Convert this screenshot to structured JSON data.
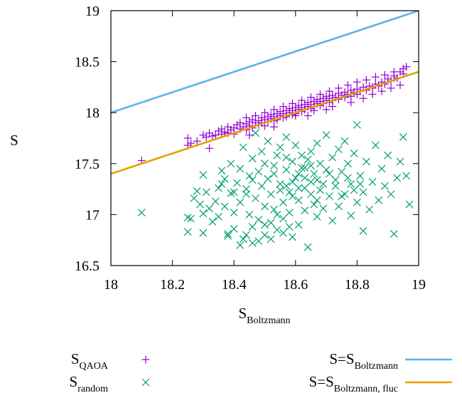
{
  "chart_data": {
    "type": "scatter",
    "xlabel": {
      "main": "S",
      "sub": "Boltzmann"
    },
    "ylabel": "S",
    "xlim": [
      18,
      19
    ],
    "ylim": [
      16.5,
      19
    ],
    "x_ticks": [
      "18",
      "18.2",
      "18.4",
      "18.6",
      "18.8",
      "19"
    ],
    "y_ticks": [
      "16.5",
      "17",
      "17.5",
      "18",
      "18.5",
      "19"
    ],
    "grid": false,
    "legend_position": "bottom",
    "series": [
      {
        "key": "qaoa",
        "legend_main": "S",
        "legend_sub": "QAOA",
        "marker": "plus",
        "color": "#9400d3",
        "points": [
          [
            18.1,
            17.53
          ],
          [
            18.25,
            17.75
          ],
          [
            18.25,
            17.68
          ],
          [
            18.26,
            17.7
          ],
          [
            18.28,
            17.72
          ],
          [
            18.3,
            17.78
          ],
          [
            18.31,
            17.76
          ],
          [
            18.32,
            17.8
          ],
          [
            18.32,
            17.65
          ],
          [
            18.33,
            17.77
          ],
          [
            18.34,
            17.78
          ],
          [
            18.35,
            17.82
          ],
          [
            18.36,
            17.79
          ],
          [
            18.36,
            17.84
          ],
          [
            18.37,
            17.81
          ],
          [
            18.38,
            17.86
          ],
          [
            18.38,
            17.8
          ],
          [
            18.39,
            17.83
          ],
          [
            18.4,
            17.85
          ],
          [
            18.4,
            17.79
          ],
          [
            18.41,
            17.88
          ],
          [
            18.42,
            17.84
          ],
          [
            18.42,
            17.9
          ],
          [
            18.43,
            17.86
          ],
          [
            18.44,
            17.89
          ],
          [
            18.44,
            17.83
          ],
          [
            18.45,
            17.91
          ],
          [
            18.45,
            17.87
          ],
          [
            18.46,
            17.93
          ],
          [
            18.46,
            17.85
          ],
          [
            18.47,
            17.9
          ],
          [
            18.48,
            17.92
          ],
          [
            18.48,
            17.88
          ],
          [
            18.49,
            17.95
          ],
          [
            18.49,
            17.9
          ],
          [
            18.5,
            17.93
          ],
          [
            18.5,
            17.87
          ],
          [
            18.51,
            17.96
          ],
          [
            18.51,
            17.91
          ],
          [
            18.52,
            17.94
          ],
          [
            18.52,
            17.98
          ],
          [
            18.53,
            17.92
          ],
          [
            18.53,
            17.96
          ],
          [
            18.54,
            17.99
          ],
          [
            18.54,
            17.93
          ],
          [
            18.55,
            17.97
          ],
          [
            18.55,
            18.01
          ],
          [
            18.56,
            17.95
          ],
          [
            18.56,
            17.99
          ],
          [
            18.57,
            18.02
          ],
          [
            18.57,
            17.96
          ],
          [
            18.58,
            18.0
          ],
          [
            18.58,
            18.04
          ],
          [
            18.59,
            17.98
          ],
          [
            18.59,
            18.02
          ],
          [
            18.6,
            18.05
          ],
          [
            18.6,
            17.99
          ],
          [
            18.61,
            18.03
          ],
          [
            18.61,
            18.07
          ],
          [
            18.62,
            18.01
          ],
          [
            18.62,
            18.05
          ],
          [
            18.63,
            18.08
          ],
          [
            18.63,
            18.03
          ],
          [
            18.64,
            18.06
          ],
          [
            18.64,
            18.1
          ],
          [
            18.65,
            18.04
          ],
          [
            18.65,
            18.08
          ],
          [
            18.66,
            18.11
          ],
          [
            18.66,
            18.06
          ],
          [
            18.67,
            18.09
          ],
          [
            18.67,
            18.13
          ],
          [
            18.68,
            18.07
          ],
          [
            18.68,
            18.11
          ],
          [
            18.69,
            18.14
          ],
          [
            18.69,
            18.09
          ],
          [
            18.7,
            18.12
          ],
          [
            18.7,
            18.16
          ],
          [
            18.71,
            18.1
          ],
          [
            18.71,
            18.14
          ],
          [
            18.72,
            18.17
          ],
          [
            18.72,
            18.12
          ],
          [
            18.73,
            18.15
          ],
          [
            18.74,
            18.19
          ],
          [
            18.74,
            18.13
          ],
          [
            18.75,
            18.17
          ],
          [
            18.76,
            18.2
          ],
          [
            18.76,
            18.15
          ],
          [
            18.77,
            18.18
          ],
          [
            18.78,
            18.22
          ],
          [
            18.78,
            18.16
          ],
          [
            18.79,
            18.2
          ],
          [
            18.8,
            18.23
          ],
          [
            18.8,
            18.18
          ],
          [
            18.81,
            18.21
          ],
          [
            18.82,
            18.25
          ],
          [
            18.83,
            18.22
          ],
          [
            18.84,
            18.26
          ],
          [
            18.85,
            18.24
          ],
          [
            18.86,
            18.28
          ],
          [
            18.87,
            18.26
          ],
          [
            18.88,
            18.3
          ],
          [
            18.89,
            18.28
          ],
          [
            18.9,
            18.33
          ],
          [
            18.91,
            18.31
          ],
          [
            18.92,
            18.36
          ],
          [
            18.93,
            18.34
          ],
          [
            18.94,
            18.4
          ],
          [
            18.95,
            18.43
          ],
          [
            18.95,
            18.38
          ],
          [
            18.96,
            18.45
          ],
          [
            18.44,
            17.95
          ],
          [
            18.47,
            17.97
          ],
          [
            18.5,
            18.0
          ],
          [
            18.53,
            18.03
          ],
          [
            18.56,
            18.06
          ],
          [
            18.59,
            18.09
          ],
          [
            18.62,
            18.12
          ],
          [
            18.65,
            18.15
          ],
          [
            18.68,
            18.18
          ],
          [
            18.71,
            18.21
          ],
          [
            18.74,
            18.24
          ],
          [
            18.77,
            18.27
          ],
          [
            18.8,
            18.3
          ],
          [
            18.83,
            18.32
          ],
          [
            18.86,
            18.35
          ],
          [
            18.89,
            18.37
          ],
          [
            18.92,
            18.4
          ],
          [
            18.6,
            17.97
          ],
          [
            18.66,
            18.02
          ],
          [
            18.72,
            18.06
          ],
          [
            18.78,
            18.1
          ],
          [
            18.82,
            18.14
          ],
          [
            18.85,
            18.18
          ],
          [
            18.88,
            18.21
          ],
          [
            18.91,
            18.24
          ],
          [
            18.94,
            18.27
          ],
          [
            18.45,
            17.78
          ],
          [
            18.53,
            17.86
          ],
          [
            18.64,
            17.97
          ],
          [
            18.7,
            18.03
          ]
        ]
      },
      {
        "key": "random",
        "legend_main": "S",
        "legend_sub": "random",
        "marker": "cross",
        "color": "#009e73",
        "points": [
          [
            18.1,
            17.02
          ],
          [
            18.25,
            16.97
          ],
          [
            18.25,
            16.83
          ],
          [
            18.26,
            16.96
          ],
          [
            18.27,
            17.16
          ],
          [
            18.28,
            17.23
          ],
          [
            18.29,
            17.1
          ],
          [
            18.3,
            17.39
          ],
          [
            18.3,
            17.01
          ],
          [
            18.3,
            16.82
          ],
          [
            18.31,
            17.22
          ],
          [
            18.32,
            17.06
          ],
          [
            18.33,
            16.93
          ],
          [
            18.34,
            17.13
          ],
          [
            18.35,
            17.26
          ],
          [
            18.35,
            16.98
          ],
          [
            18.36,
            17.43
          ],
          [
            18.37,
            17.35
          ],
          [
            18.37,
            17.08
          ],
          [
            18.38,
            16.81
          ],
          [
            18.39,
            17.21
          ],
          [
            18.39,
            17.5
          ],
          [
            18.4,
            17.02
          ],
          [
            18.4,
            16.86
          ],
          [
            18.41,
            17.31
          ],
          [
            18.42,
            17.12
          ],
          [
            18.42,
            17.45
          ],
          [
            18.43,
            16.76
          ],
          [
            18.43,
            17.66
          ],
          [
            18.44,
            17.25
          ],
          [
            18.45,
            17.0
          ],
          [
            18.45,
            17.38
          ],
          [
            18.46,
            16.88
          ],
          [
            18.46,
            17.55
          ],
          [
            18.47,
            17.16
          ],
          [
            18.47,
            17.8
          ],
          [
            18.48,
            17.42
          ],
          [
            18.48,
            16.95
          ],
          [
            18.49,
            17.28
          ],
          [
            18.49,
            17.62
          ],
          [
            18.5,
            17.08
          ],
          [
            18.5,
            16.8
          ],
          [
            18.51,
            17.35
          ],
          [
            18.51,
            17.72
          ],
          [
            18.52,
            17.2
          ],
          [
            18.52,
            16.92
          ],
          [
            18.53,
            17.48
          ],
          [
            18.53,
            17.05
          ],
          [
            18.54,
            17.58
          ],
          [
            18.54,
            16.85
          ],
          [
            18.55,
            17.3
          ],
          [
            18.55,
            17.66
          ],
          [
            18.56,
            17.12
          ],
          [
            18.56,
            16.96
          ],
          [
            18.57,
            17.44
          ],
          [
            18.57,
            17.76
          ],
          [
            18.58,
            17.22
          ],
          [
            18.58,
            17.02
          ],
          [
            18.59,
            17.52
          ],
          [
            18.59,
            16.78
          ],
          [
            18.6,
            17.36
          ],
          [
            18.6,
            17.68
          ],
          [
            18.61,
            17.14
          ],
          [
            18.61,
            16.9
          ],
          [
            18.62,
            17.46
          ],
          [
            18.62,
            17.58
          ],
          [
            18.63,
            17.26
          ],
          [
            18.63,
            17.04
          ],
          [
            18.64,
            17.54
          ],
          [
            18.64,
            16.68
          ],
          [
            18.65,
            17.32
          ],
          [
            18.65,
            17.62
          ],
          [
            18.66,
            17.1
          ],
          [
            18.66,
            17.4
          ],
          [
            18.67,
            17.7
          ],
          [
            18.67,
            16.98
          ],
          [
            18.68,
            17.24
          ],
          [
            18.68,
            17.5
          ],
          [
            18.69,
            17.06
          ],
          [
            18.7,
            17.44
          ],
          [
            18.7,
            17.78
          ],
          [
            18.71,
            17.18
          ],
          [
            18.72,
            17.56
          ],
          [
            18.72,
            16.94
          ],
          [
            18.73,
            17.34
          ],
          [
            18.74,
            17.64
          ],
          [
            18.74,
            17.08
          ],
          [
            18.75,
            17.42
          ],
          [
            18.76,
            17.72
          ],
          [
            18.76,
            17.2
          ],
          [
            18.77,
            17.5
          ],
          [
            18.78,
            16.99
          ],
          [
            18.78,
            17.3
          ],
          [
            18.79,
            17.6
          ],
          [
            18.8,
            17.12
          ],
          [
            18.8,
            17.88
          ],
          [
            18.81,
            17.38
          ],
          [
            18.82,
            16.84
          ],
          [
            18.82,
            17.22
          ],
          [
            18.83,
            17.52
          ],
          [
            18.84,
            17.05
          ],
          [
            18.85,
            17.32
          ],
          [
            18.86,
            17.68
          ],
          [
            18.87,
            17.14
          ],
          [
            18.88,
            17.45
          ],
          [
            18.89,
            17.28
          ],
          [
            18.9,
            17.58
          ],
          [
            18.91,
            17.2
          ],
          [
            18.92,
            16.81
          ],
          [
            18.93,
            17.36
          ],
          [
            18.94,
            17.52
          ],
          [
            18.95,
            17.76
          ],
          [
            18.96,
            17.38
          ],
          [
            18.97,
            17.1
          ],
          [
            18.44,
            16.8
          ],
          [
            18.46,
            16.72
          ],
          [
            18.48,
            16.74
          ],
          [
            18.5,
            16.9
          ],
          [
            18.52,
            16.76
          ],
          [
            18.54,
            17.0
          ],
          [
            18.56,
            16.82
          ],
          [
            18.58,
            16.88
          ],
          [
            18.38,
            16.79
          ],
          [
            18.42,
            16.7
          ],
          [
            18.57,
            17.28
          ],
          [
            18.59,
            17.18
          ],
          [
            18.61,
            17.4
          ],
          [
            18.63,
            17.46
          ],
          [
            18.65,
            17.2
          ],
          [
            18.67,
            17.34
          ],
          [
            18.53,
            17.4
          ],
          [
            18.55,
            17.24
          ],
          [
            18.57,
            17.56
          ],
          [
            18.59,
            17.32
          ],
          [
            18.61,
            17.26
          ],
          [
            18.63,
            17.36
          ],
          [
            18.65,
            17.48
          ],
          [
            18.67,
            17.14
          ],
          [
            18.69,
            17.3
          ],
          [
            18.71,
            17.4
          ],
          [
            18.73,
            17.28
          ],
          [
            18.75,
            17.18
          ],
          [
            18.77,
            17.36
          ],
          [
            18.79,
            17.24
          ],
          [
            18.81,
            17.3
          ],
          [
            18.5,
            17.5
          ],
          [
            18.46,
            17.34
          ],
          [
            18.44,
            17.2
          ],
          [
            18.4,
            17.22
          ],
          [
            18.36,
            17.3
          ]
        ]
      }
    ],
    "lines": [
      {
        "key": "boltzmann",
        "legend_main": "S=S",
        "legend_sub": "Boltzmann",
        "color": "#56b4e9",
        "x": [
          18,
          19
        ],
        "y": [
          18.0,
          19.0
        ]
      },
      {
        "key": "fluc",
        "legend_main": "S=S",
        "legend_sub": "Boltzmann, fluc",
        "color": "#e69f00",
        "x": [
          18,
          19
        ],
        "y": [
          17.4,
          18.4
        ]
      }
    ]
  }
}
